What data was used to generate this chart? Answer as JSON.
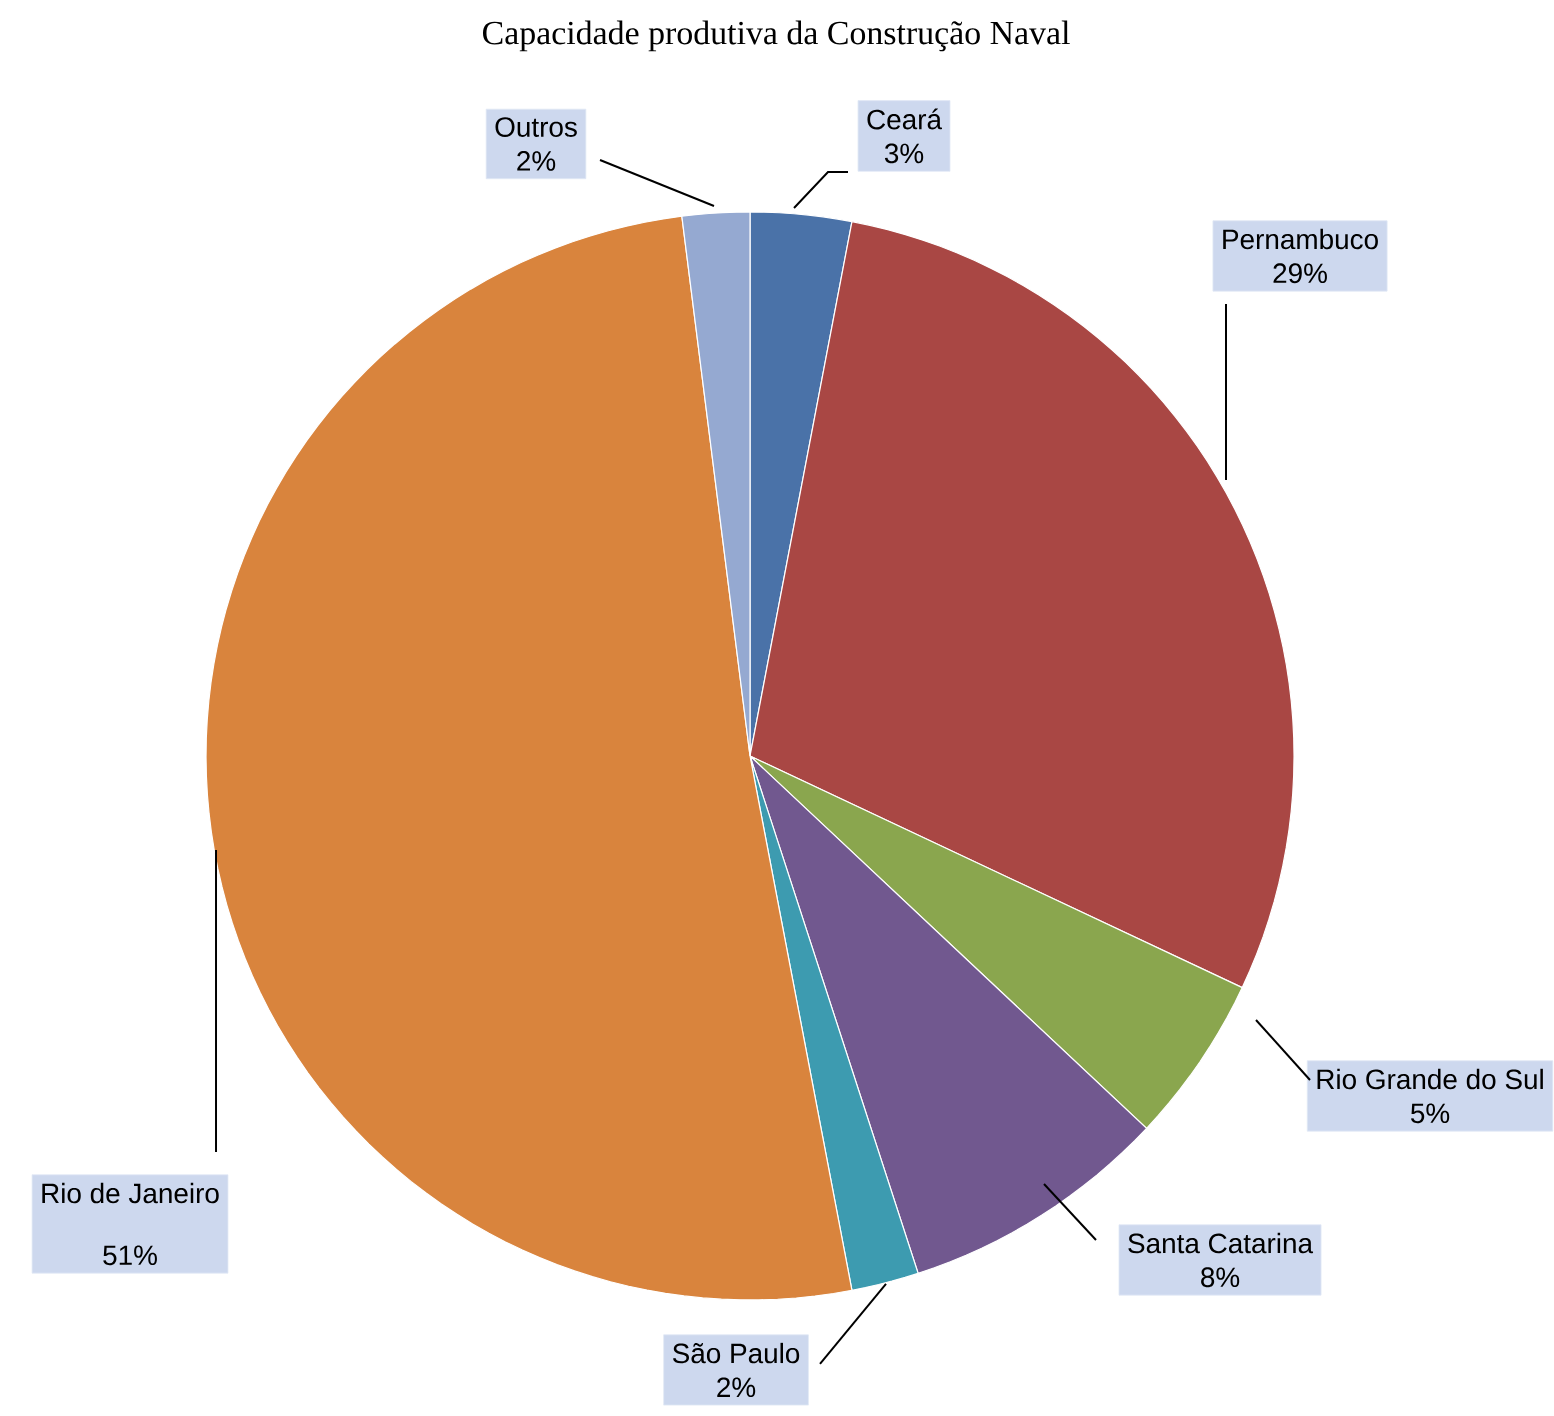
{
  "chart_data": {
    "type": "pie",
    "title": "Capacidade produtiva da Construção Naval",
    "categories": [
      "Ceará",
      "Pernambuco",
      "Rio Grande do Sul",
      "Santa Catarina",
      "São Paulo",
      "Rio de Janeiro",
      "Outros"
    ],
    "values": [
      3,
      29,
      5,
      8,
      2,
      51,
      2
    ],
    "colors": [
      "#4a72a8",
      "#a94744",
      "#8aa64e",
      "#71588f",
      "#3d9bb0",
      "#d9843d",
      "#95a9d1"
    ],
    "value_labels": [
      "3%",
      "29%",
      "5%",
      "8%",
      "2%",
      "51%",
      "2%"
    ]
  }
}
